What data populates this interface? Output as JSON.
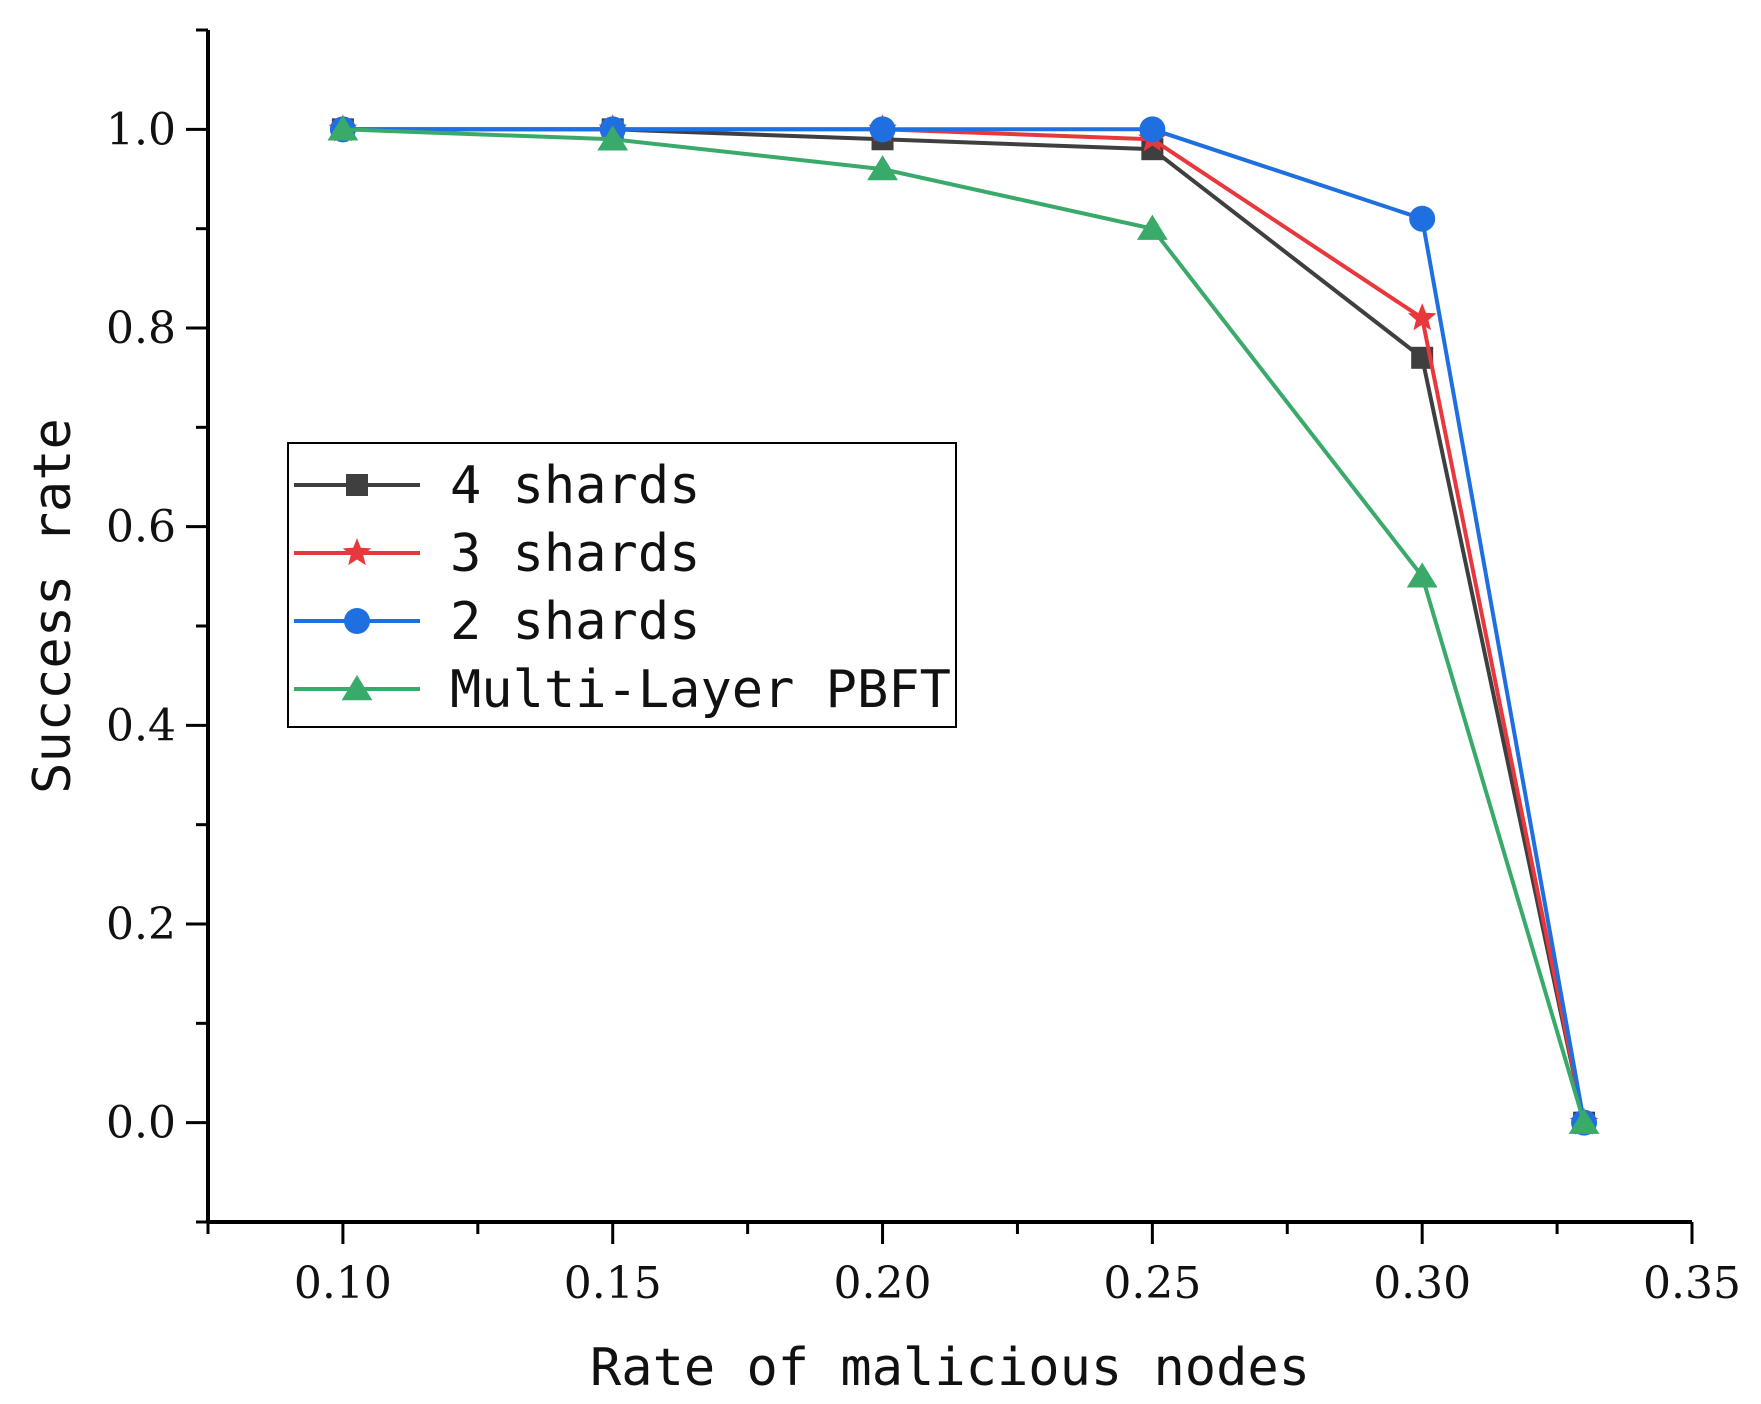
{
  "chart_data": {
    "type": "line",
    "title": "",
    "xlabel": "Rate of malicious nodes",
    "ylabel": "Success rate",
    "xlim": [
      0.075,
      0.35
    ],
    "ylim": [
      -0.1,
      1.1
    ],
    "x_ticks": [
      0.1,
      0.15,
      0.2,
      0.25,
      0.3,
      0.35
    ],
    "x_tick_labels": [
      "0.10",
      "0.15",
      "0.20",
      "0.25",
      "0.30",
      "0.35"
    ],
    "y_ticks": [
      0.0,
      0.2,
      0.4,
      0.6,
      0.8,
      1.0
    ],
    "y_tick_labels": [
      "0.0",
      "0.2",
      "0.4",
      "0.6",
      "0.8",
      "1.0"
    ],
    "grid": false,
    "legend_position": "center-left",
    "x": [
      0.1,
      0.15,
      0.2,
      0.25,
      0.3,
      0.33
    ],
    "series": [
      {
        "name": "4 shards",
        "color": "#3f3f3f",
        "marker": "square",
        "values": [
          1.0,
          1.0,
          0.99,
          0.98,
          0.77,
          0.0
        ]
      },
      {
        "name": "3 shards",
        "color": "#e8383d",
        "marker": "star",
        "values": [
          1.0,
          1.0,
          1.0,
          0.99,
          0.81,
          0.0
        ]
      },
      {
        "name": "2 shards",
        "color": "#1f6fe0",
        "marker": "circle",
        "values": [
          1.0,
          1.0,
          1.0,
          1.0,
          0.91,
          0.0
        ]
      },
      {
        "name": "Multi-Layer PBFT",
        "color": "#3aaa6a",
        "marker": "triangle",
        "values": [
          1.0,
          0.99,
          0.96,
          0.9,
          0.55,
          0.0
        ]
      }
    ]
  }
}
